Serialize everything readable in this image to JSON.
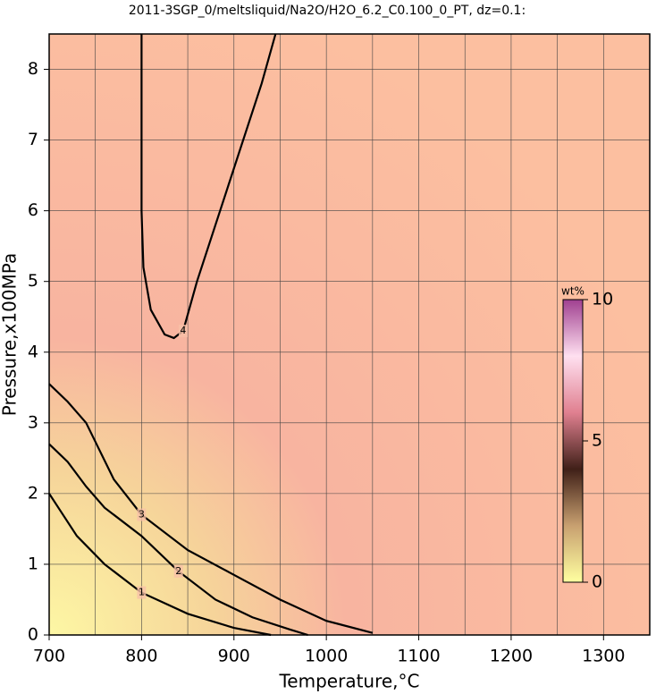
{
  "chart_data": {
    "type": "contour",
    "title": "2011-3SGP_0/meltsliquid/Na2O/H2O_6.2_C0.100_0_PT, dz=0.1:",
    "x_label": "Temperature,°C",
    "y_label": "Pressure,x100MPa",
    "xlim": [
      700,
      1350
    ],
    "ylim": [
      0,
      8.5
    ],
    "xticks": [
      700,
      800,
      900,
      1000,
      1100,
      1200,
      1300
    ],
    "yticks": [
      0,
      1,
      2,
      3,
      4,
      5,
      6,
      7,
      8
    ],
    "x_minor_grid": [
      750,
      850,
      950,
      1050,
      1150,
      1250
    ],
    "grid": true,
    "contours": [
      {
        "level": 1,
        "x": [
          700,
          710,
          730,
          760,
          800,
          850,
          900,
          940
        ],
        "y": [
          2.0,
          1.8,
          1.4,
          1.0,
          0.6,
          0.3,
          0.1,
          0
        ]
      },
      {
        "level": 2,
        "x": [
          700,
          720,
          740,
          760,
          800,
          840,
          880,
          920,
          960,
          980
        ],
        "y": [
          2.7,
          2.45,
          2.1,
          1.8,
          1.4,
          0.9,
          0.5,
          0.25,
          0.08,
          0
        ]
      },
      {
        "level": 3,
        "x": [
          700,
          720,
          740,
          755,
          770,
          800,
          850,
          900,
          950,
          1000,
          1050
        ],
        "y": [
          3.55,
          3.3,
          3.0,
          2.6,
          2.2,
          1.7,
          1.2,
          0.85,
          0.5,
          0.2,
          0.03
        ]
      },
      {
        "level": 4,
        "x": [
          800,
          800,
          802,
          810,
          825,
          835,
          845,
          860,
          880,
          905,
          930,
          945
        ],
        "y": [
          8.5,
          6.0,
          5.2,
          4.6,
          4.25,
          4.2,
          4.3,
          5.0,
          5.8,
          6.8,
          7.8,
          8.5
        ]
      }
    ],
    "colorbar": {
      "label": "wt%",
      "lim": [
        0,
        10
      ],
      "ticks": [
        0,
        5,
        10
      ],
      "colors": [
        "#ffffa0",
        "#c8a070",
        "#402018",
        "#e08090",
        "#ffe0f0",
        "#a04090"
      ]
    }
  }
}
